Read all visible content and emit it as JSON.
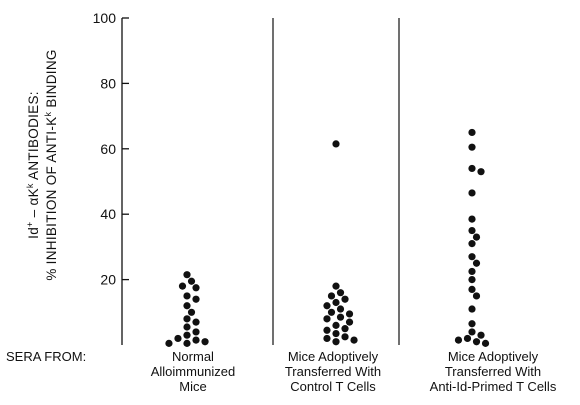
{
  "chart_data": {
    "type": "scatter",
    "ylabel_line1_prefix": "Id",
    "ylabel_line1_sup1": "+",
    "ylabel_line1_mid": " – αK",
    "ylabel_line1_sup2": "k",
    "ylabel_line1_suffix": " ANTIBODIES:",
    "ylabel_line2_prefix": "% INHIBITION OF ANTI-K",
    "ylabel_line2_sup": "k",
    "ylabel_line2_suffix": " BINDING",
    "ylim": [
      0,
      100
    ],
    "yticks": [
      "20",
      "40",
      "60",
      "80",
      "100"
    ],
    "row_label": "SERA FROM:",
    "groups": [
      {
        "label_lines": [
          "Normal",
          "Alloimmunized",
          "Mice"
        ],
        "values": [
          21.5,
          19.5,
          18,
          17.5,
          15,
          14,
          12,
          10,
          8,
          7,
          5.5,
          4,
          3,
          2,
          1.5,
          1,
          0.5,
          0.5
        ]
      },
      {
        "label_lines": [
          "Mice Adoptively",
          "Transferred With",
          "Control T Cells"
        ],
        "values": [
          61.5,
          18,
          16,
          15,
          14,
          13,
          12,
          11,
          10,
          9.5,
          8.5,
          8,
          7,
          6,
          5,
          4.5,
          3.5,
          2.5,
          2,
          1.5,
          1
        ]
      },
      {
        "label_lines": [
          "Mice Adoptively",
          "Transferred With",
          "Anti-Id-Primed T Cells"
        ],
        "values": [
          65,
          60.5,
          54,
          53,
          46.5,
          38.5,
          35,
          33,
          31,
          27,
          25,
          22.5,
          20,
          17,
          15,
          11,
          6.5,
          4,
          3,
          2,
          1.5,
          1,
          0.5
        ]
      }
    ]
  }
}
